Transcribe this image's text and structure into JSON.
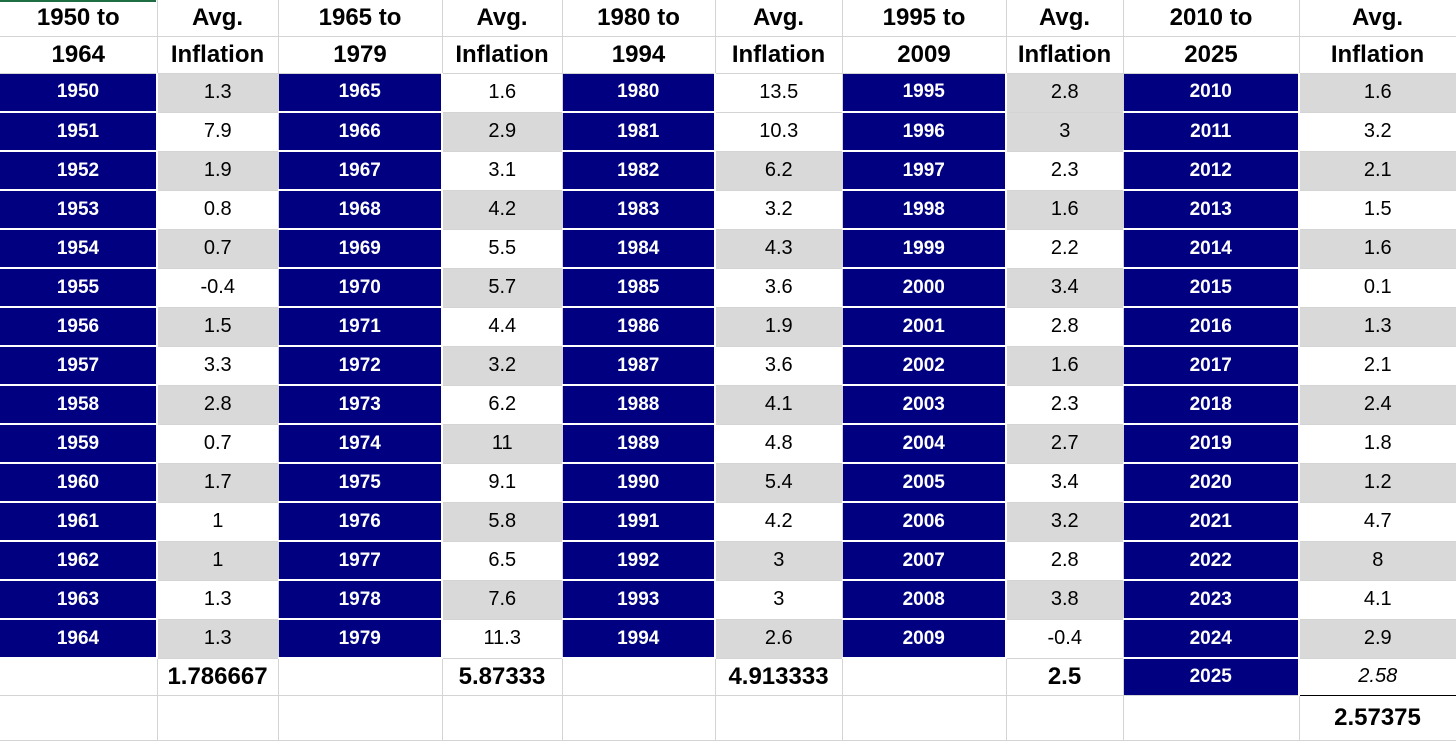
{
  "headers": [
    {
      "line1": "1950 to",
      "line2": "1964"
    },
    {
      "line1": "Avg.",
      "line2": "Inflation"
    },
    {
      "line1": "1965 to",
      "line2": "1979"
    },
    {
      "line1": "Avg.",
      "line2": "Inflation"
    },
    {
      "line1": "1980 to",
      "line2": "1994"
    },
    {
      "line1": "Avg.",
      "line2": "Inflation"
    },
    {
      "line1": "1995 to",
      "line2": "2009"
    },
    {
      "line1": "Avg.",
      "line2": "Inflation"
    },
    {
      "line1": "2010 to",
      "line2": "2025"
    },
    {
      "line1": "Avg.",
      "line2": "Inflation"
    }
  ],
  "rows": [
    [
      "1950",
      "1.3",
      "1965",
      "1.6",
      "1980",
      "13.5",
      "1995",
      "2.8",
      "2010",
      "1.6"
    ],
    [
      "1951",
      "7.9",
      "1966",
      "2.9",
      "1981",
      "10.3",
      "1996",
      "3",
      "2011",
      "3.2"
    ],
    [
      "1952",
      "1.9",
      "1967",
      "3.1",
      "1982",
      "6.2",
      "1997",
      "2.3",
      "2012",
      "2.1"
    ],
    [
      "1953",
      "0.8",
      "1968",
      "4.2",
      "1983",
      "3.2",
      "1998",
      "1.6",
      "2013",
      "1.5"
    ],
    [
      "1954",
      "0.7",
      "1969",
      "5.5",
      "1984",
      "4.3",
      "1999",
      "2.2",
      "2014",
      "1.6"
    ],
    [
      "1955",
      "-0.4",
      "1970",
      "5.7",
      "1985",
      "3.6",
      "2000",
      "3.4",
      "2015",
      "0.1"
    ],
    [
      "1956",
      "1.5",
      "1971",
      "4.4",
      "1986",
      "1.9",
      "2001",
      "2.8",
      "2016",
      "1.3"
    ],
    [
      "1957",
      "3.3",
      "1972",
      "3.2",
      "1987",
      "3.6",
      "2002",
      "1.6",
      "2017",
      "2.1"
    ],
    [
      "1958",
      "2.8",
      "1973",
      "6.2",
      "1988",
      "4.1",
      "2003",
      "2.3",
      "2018",
      "2.4"
    ],
    [
      "1959",
      "0.7",
      "1974",
      "11",
      "1989",
      "4.8",
      "2004",
      "2.7",
      "2019",
      "1.8"
    ],
    [
      "1960",
      "1.7",
      "1975",
      "9.1",
      "1990",
      "5.4",
      "2005",
      "3.4",
      "2020",
      "1.2"
    ],
    [
      "1961",
      "1",
      "1976",
      "5.8",
      "1991",
      "4.2",
      "2006",
      "3.2",
      "2021",
      "4.7"
    ],
    [
      "1962",
      "1",
      "1977",
      "6.5",
      "1992",
      "3",
      "2007",
      "2.8",
      "2022",
      "8"
    ],
    [
      "1963",
      "1.3",
      "1978",
      "7.6",
      "1993",
      "3",
      "2008",
      "3.8",
      "2023",
      "4.1"
    ],
    [
      "1964",
      "1.3",
      "1979",
      "11.3",
      "1994",
      "2.6",
      "2009",
      "-0.4",
      "2024",
      "2.9"
    ]
  ],
  "shading": [
    [
      1,
      0,
      0,
      1,
      1
    ],
    [
      0,
      1,
      0,
      1,
      0
    ],
    [
      1,
      0,
      1,
      0,
      1
    ],
    [
      0,
      1,
      0,
      1,
      0
    ],
    [
      1,
      0,
      1,
      0,
      1
    ],
    [
      0,
      1,
      0,
      1,
      0
    ],
    [
      1,
      0,
      1,
      0,
      1
    ],
    [
      0,
      1,
      0,
      1,
      0
    ],
    [
      1,
      0,
      1,
      0,
      1
    ],
    [
      0,
      1,
      0,
      1,
      0
    ],
    [
      1,
      0,
      1,
      0,
      1
    ],
    [
      0,
      1,
      0,
      1,
      0
    ],
    [
      1,
      0,
      1,
      0,
      1
    ],
    [
      0,
      1,
      0,
      1,
      0
    ],
    [
      1,
      0,
      1,
      0,
      1
    ]
  ],
  "averages": [
    "1.786667",
    "5.87333",
    "4.913333",
    "2.5"
  ],
  "extra_year": "2025",
  "extra_value": "2.58",
  "final_average": "2.57375",
  "colors": {
    "year_fill": "#000080",
    "shade_fill": "#d9d9d9"
  }
}
